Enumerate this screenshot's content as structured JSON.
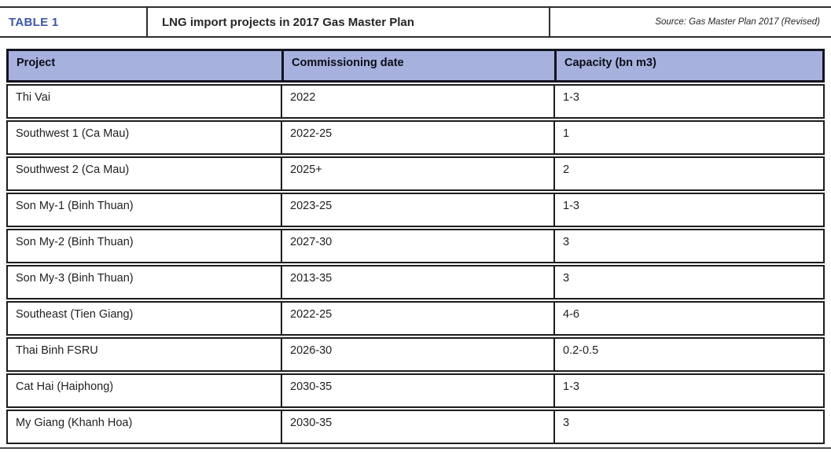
{
  "titlebar": {
    "label": "TABLE 1",
    "title": "LNG import projects in 2017 Gas Master Plan",
    "source": "Source: Gas Master Plan 2017 (Revised)"
  },
  "colors": {
    "label_blue": "#3d57a8",
    "header_bg": "#a6b1de",
    "border_dark": "#1c1c1c"
  },
  "table": {
    "columns": [
      "Project",
      "Commissioning date",
      "Capacity (bn m3)"
    ],
    "rows": [
      [
        "Thi Vai",
        "2022",
        "1-3"
      ],
      [
        "Southwest 1 (Ca Mau)",
        "2022-25",
        "1"
      ],
      [
        "Southwest 2 (Ca Mau)",
        "2025+",
        "2"
      ],
      [
        "Son My-1 (Binh Thuan)",
        "2023-25",
        "1-3"
      ],
      [
        "Son My-2 (Binh Thuan)",
        "2027-30",
        "3"
      ],
      [
        "Son My-3 (Binh Thuan)",
        "2013-35",
        "3"
      ],
      [
        "Southeast (Tien Giang)",
        "2022-25",
        "4-6"
      ],
      [
        "Thai Binh FSRU",
        "2026-30",
        "0.2-0.5"
      ],
      [
        "Cat Hai (Haiphong)",
        "2030-35",
        "1-3"
      ],
      [
        "My Giang (Khanh Hoa)",
        "2030-35",
        "3"
      ]
    ]
  }
}
